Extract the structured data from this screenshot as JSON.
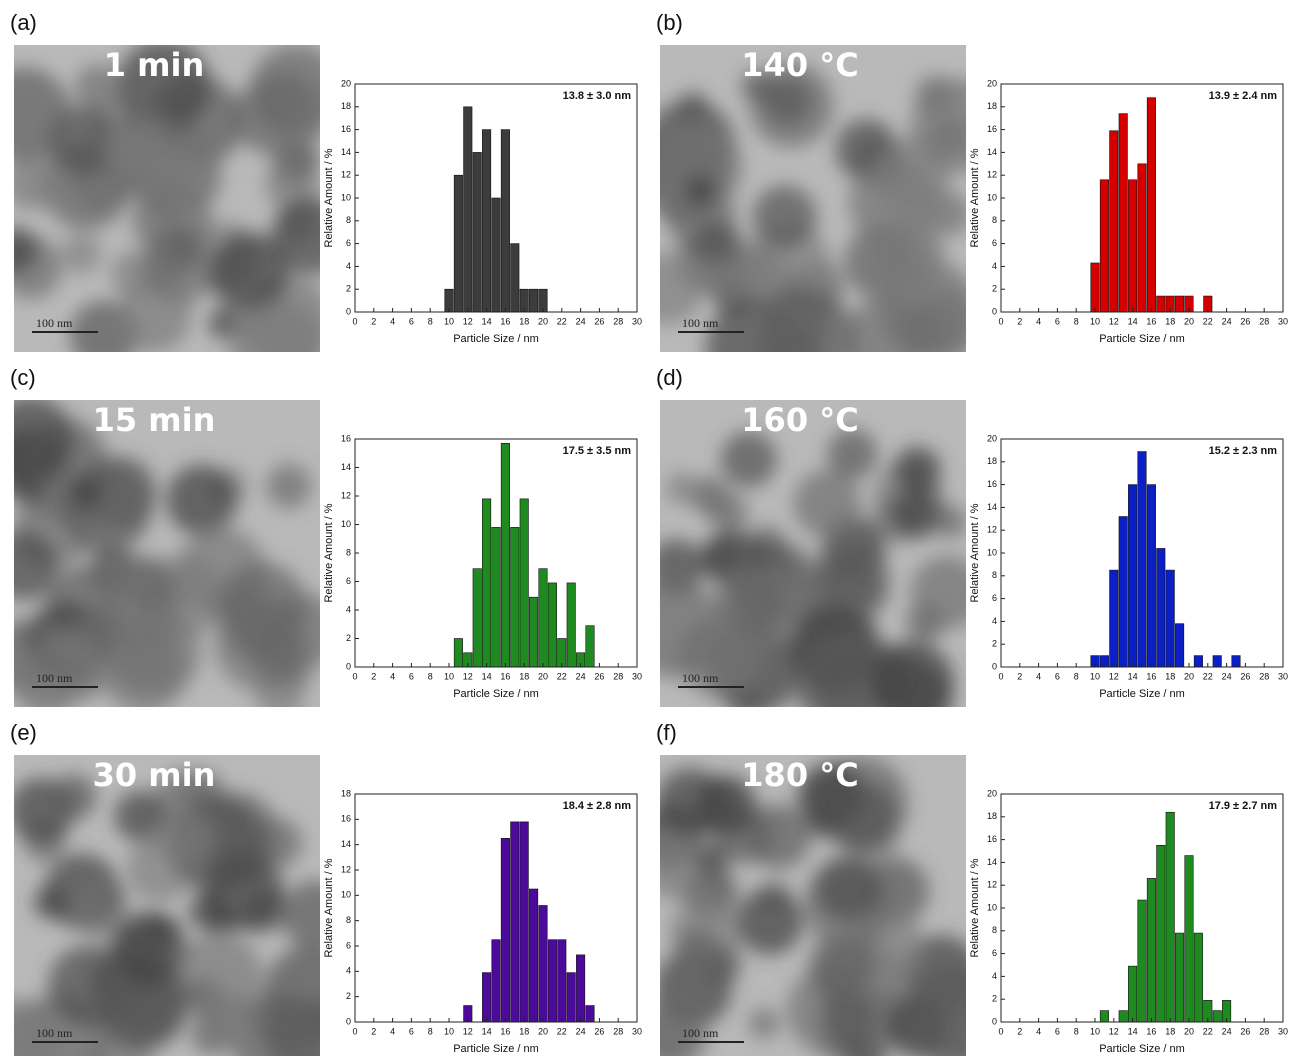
{
  "chart_data": [
    {
      "type": "bar",
      "panel_label": "(a)",
      "image_label": "1 min",
      "scale_bar_label": "100 nm",
      "annotation": "13.8 ± 3.0 nm",
      "xlabel": "Particle Size / nm",
      "ylabel": "Relative Amount / %",
      "x": [
        10,
        11,
        12,
        13,
        14,
        15,
        16,
        17,
        18,
        19,
        20
      ],
      "values": [
        2,
        12,
        18,
        14,
        16,
        10,
        16,
        6,
        2,
        2,
        2
      ],
      "color": "#3c3c3c",
      "xlim": [
        0,
        30
      ],
      "xticks": [
        0,
        2,
        4,
        6,
        8,
        10,
        12,
        14,
        16,
        18,
        20,
        22,
        24,
        26,
        28,
        30
      ],
      "ylim": [
        0,
        20
      ],
      "yticks": [
        0,
        2,
        4,
        6,
        8,
        10,
        12,
        14,
        16,
        18,
        20
      ]
    },
    {
      "type": "bar",
      "panel_label": "(b)",
      "image_label": "140 °C",
      "scale_bar_label": "100 nm",
      "annotation": "13.9 ± 2.4 nm",
      "xlabel": "Particle Size / nm",
      "ylabel": "Relative Amount / %",
      "x": [
        10,
        11,
        12,
        13,
        14,
        15,
        16,
        17,
        18,
        19,
        20,
        22
      ],
      "values": [
        4.3,
        11.6,
        15.9,
        17.4,
        11.6,
        13.0,
        18.8,
        1.4,
        1.4,
        1.4,
        1.4,
        1.4
      ],
      "color": "#d40000",
      "xlim": [
        0,
        30
      ],
      "xticks": [
        0,
        2,
        4,
        6,
        8,
        10,
        12,
        14,
        16,
        18,
        20,
        22,
        24,
        26,
        28,
        30
      ],
      "ylim": [
        0,
        20
      ],
      "yticks": [
        0,
        2,
        4,
        6,
        8,
        10,
        12,
        14,
        16,
        18,
        20
      ]
    },
    {
      "type": "bar",
      "panel_label": "(c)",
      "image_label": "15 min",
      "scale_bar_label": "100 nm",
      "annotation": "17.5 ± 3.5 nm",
      "xlabel": "Particle Size / nm",
      "ylabel": "Relative Amount / %",
      "x": [
        11,
        12,
        13,
        14,
        15,
        16,
        17,
        18,
        19,
        20,
        21,
        22,
        23,
        24,
        25
      ],
      "values": [
        2,
        1,
        6.9,
        11.8,
        9.8,
        15.7,
        9.8,
        11.8,
        4.9,
        6.9,
        5.9,
        2,
        5.9,
        1,
        2.9
      ],
      "color": "#1f8a1f",
      "xlim": [
        0,
        30
      ],
      "xticks": [
        0,
        2,
        4,
        6,
        8,
        10,
        12,
        14,
        16,
        18,
        20,
        22,
        24,
        26,
        28,
        30
      ],
      "ylim": [
        0,
        16
      ],
      "yticks": [
        0,
        2,
        4,
        6,
        8,
        10,
        12,
        14,
        16
      ]
    },
    {
      "type": "bar",
      "panel_label": "(d)",
      "image_label": "160 °C",
      "scale_bar_label": "100 nm",
      "annotation": "15.2 ± 2.3 nm",
      "xlabel": "Particle Size / nm",
      "ylabel": "Relative Amount / %",
      "x": [
        10,
        11,
        12,
        13,
        14,
        15,
        16,
        17,
        18,
        19,
        21,
        23,
        25
      ],
      "values": [
        1,
        1,
        8.5,
        13.2,
        16,
        18.9,
        16,
        10.4,
        8.5,
        3.8,
        1,
        1,
        1
      ],
      "color": "#0a1fc4",
      "xlim": [
        0,
        30
      ],
      "xticks": [
        0,
        2,
        4,
        6,
        8,
        10,
        12,
        14,
        16,
        18,
        20,
        22,
        24,
        26,
        28,
        30
      ],
      "ylim": [
        0,
        20
      ],
      "yticks": [
        0,
        2,
        4,
        6,
        8,
        10,
        12,
        14,
        16,
        18,
        20
      ]
    },
    {
      "type": "bar",
      "panel_label": "(e)",
      "image_label": "30 min",
      "scale_bar_label": "100 nm",
      "annotation": "18.4 ± 2.8 nm",
      "xlabel": "Particle Size / nm",
      "ylabel": "Relative Amount / %",
      "x": [
        12,
        14,
        15,
        16,
        17,
        18,
        19,
        20,
        21,
        22,
        23,
        24,
        25
      ],
      "values": [
        1.3,
        3.9,
        6.5,
        14.5,
        15.8,
        15.8,
        10.5,
        9.2,
        6.5,
        6.5,
        3.9,
        5.3,
        1.3
      ],
      "color": "#4b0a9a",
      "xlim": [
        0,
        30
      ],
      "xticks": [
        0,
        2,
        4,
        6,
        8,
        10,
        12,
        14,
        16,
        18,
        20,
        22,
        24,
        26,
        28,
        30
      ],
      "ylim": [
        0,
        18
      ],
      "yticks": [
        0,
        2,
        4,
        6,
        8,
        10,
        12,
        14,
        16,
        18
      ]
    },
    {
      "type": "bar",
      "panel_label": "(f)",
      "image_label": "180 °C",
      "scale_bar_label": "100 nm",
      "annotation": "17.9 ± 2.7 nm",
      "xlabel": "Particle Size / nm",
      "ylabel": "Relative Amount / %",
      "x": [
        11,
        13,
        14,
        15,
        16,
        17,
        18,
        19,
        20,
        21,
        22,
        23,
        24
      ],
      "values": [
        1,
        1,
        4.9,
        10.7,
        12.6,
        15.5,
        18.4,
        7.8,
        14.6,
        7.8,
        1.9,
        1,
        1.9
      ],
      "color": "#1f8a1f",
      "xlim": [
        0,
        30
      ],
      "xticks": [
        0,
        2,
        4,
        6,
        8,
        10,
        12,
        14,
        16,
        18,
        20,
        22,
        24,
        26,
        28,
        30
      ],
      "ylim": [
        0,
        20
      ],
      "yticks": [
        0,
        2,
        4,
        6,
        8,
        10,
        12,
        14,
        16,
        18,
        20
      ]
    }
  ]
}
